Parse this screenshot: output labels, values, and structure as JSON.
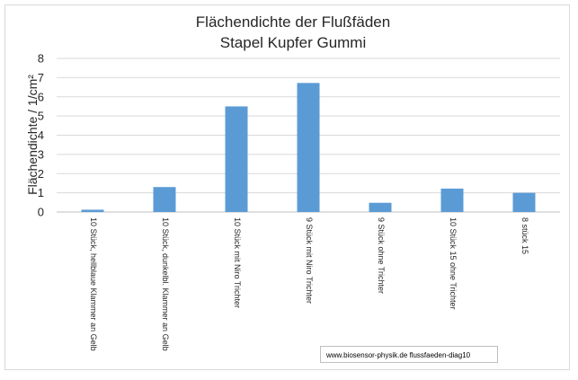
{
  "chart_data": {
    "type": "bar",
    "title": "Flächendichte der Flußfäden",
    "subtitle": "Stapel Kupfer Gummi",
    "ylabel": "Flächendichte /  1/cm²",
    "xlabel": "",
    "ylim": [
      0,
      8
    ],
    "yticks": [
      "0",
      "1",
      "2",
      "3",
      "4",
      "5",
      "6",
      "7",
      "8"
    ],
    "grid": true,
    "categories": [
      "10 Stück, hellblaue Klammer an Gelb",
      "10 Stück, dunkelbl. Klammer an Gelb",
      "10 Stück mit Niro Trichter",
      "9 Stück mit Niro Trichter",
      "9 Stück ohne Trichter",
      "10 Stück 15 ohne Trichter",
      "8 stück 15"
    ],
    "values": [
      0.12,
      1.3,
      5.5,
      6.72,
      0.48,
      1.22,
      1.0
    ],
    "bar_color": "#5b9bd5"
  },
  "source_box": "www.biosensor-physik.de  flussfaeden-diag10"
}
